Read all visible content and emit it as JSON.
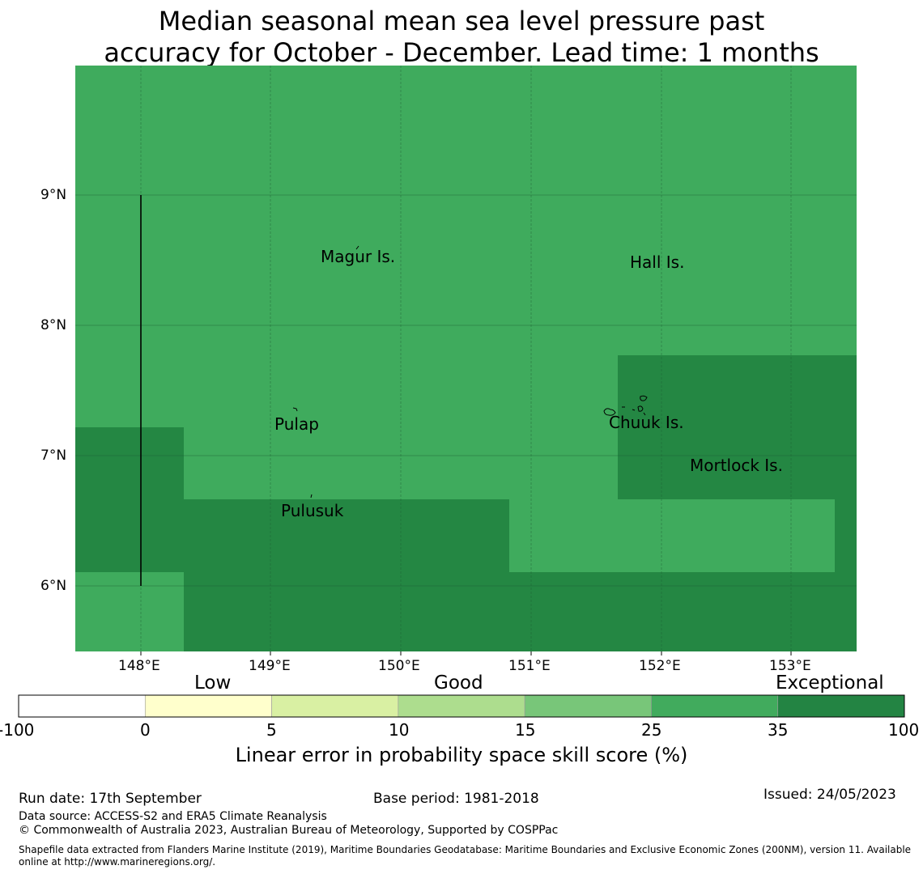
{
  "title": {
    "line1": "Median seasonal mean sea level pressure past",
    "line2": "accuracy for October - December. Lead time: 1 months"
  },
  "map": {
    "lon_labels": [
      "148°E",
      "149°E",
      "150°E",
      "151°E",
      "152°E",
      "153°E"
    ],
    "lat_labels": [
      "9°N",
      "8°N",
      "7°N",
      "6°N"
    ],
    "places": [
      {
        "name": "Magur Is."
      },
      {
        "name": "Hall Is."
      },
      {
        "name": "Pulap"
      },
      {
        "name": "Chuuk Is."
      },
      {
        "name": "Mortlock Is."
      },
      {
        "name": "Pulusuk"
      }
    ],
    "colors": {
      "good_dark": "#3fab5d",
      "exceptional": "#248743"
    }
  },
  "colorbar": {
    "categories": [
      "Low",
      "Good",
      "Exceptional"
    ],
    "ticks": [
      "-100",
      "0",
      "5",
      "10",
      "15",
      "25",
      "35",
      "100"
    ],
    "colors": [
      "#ffffff",
      "#ffffcc",
      "#d9f0a3",
      "#addd8e",
      "#78c679",
      "#41ab5d",
      "#238443"
    ],
    "label": "Linear error in probability space skill score (%)"
  },
  "footer": {
    "run_date": "Run date: 17th September",
    "base_period": "Base period: 1981-2018",
    "issued": "Issued: 24/05/2023",
    "data_source": "Data source: ACCESS-S2 and ERA5 Climate Reanalysis",
    "copyright": "© Commonwealth of Australia 2023, Australian Bureau of Meteorology, Supported by COSPPac",
    "shapefile_line1": "Shapefile data extracted from Flanders Marine Institute (2019), Maritime Boundaries Geodatabase: Maritime Boundaries and Exclusive Economic Zones (200NM), version 11. Available",
    "shapefile_line2": "online at http://www.marineregions.org/."
  }
}
